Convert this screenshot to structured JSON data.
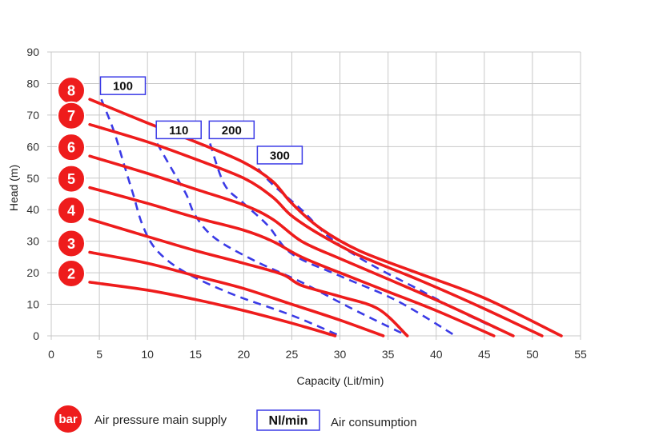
{
  "chart_data": {
    "type": "line",
    "title": "",
    "xlabel": "Capacity (Lit/min)",
    "ylabel": "Head (m)",
    "xlim": [
      0,
      55
    ],
    "ylim": [
      0,
      90
    ],
    "xticks": [
      0,
      5,
      10,
      15,
      20,
      25,
      30,
      35,
      40,
      45,
      50,
      55
    ],
    "yticks": [
      0,
      10,
      20,
      30,
      40,
      50,
      60,
      70,
      80,
      90
    ],
    "grid": true,
    "colors": {
      "pressure": "#ee1c1c",
      "air": "#3b3be6"
    },
    "pressure_curves": [
      {
        "label": "8",
        "points": [
          [
            4,
            75
          ],
          [
            10,
            67.5
          ],
          [
            15,
            61.5
          ],
          [
            20,
            55
          ],
          [
            23,
            49
          ],
          [
            25,
            42
          ],
          [
            28,
            34
          ],
          [
            32,
            27
          ],
          [
            38,
            20
          ],
          [
            45,
            12
          ],
          [
            53,
            0
          ]
        ]
      },
      {
        "label": "7",
        "points": [
          [
            4,
            67
          ],
          [
            10,
            61.5
          ],
          [
            15,
            56
          ],
          [
            20,
            50
          ],
          [
            23,
            44
          ],
          [
            25,
            38
          ],
          [
            28,
            32
          ],
          [
            32,
            25.5
          ],
          [
            38,
            18
          ],
          [
            44,
            10
          ],
          [
            51,
            0
          ]
        ]
      },
      {
        "label": "6",
        "points": [
          [
            4,
            57
          ],
          [
            10,
            51.5
          ],
          [
            15,
            46.5
          ],
          [
            20,
            41.5
          ],
          [
            23,
            37
          ],
          [
            26,
            30
          ],
          [
            30,
            24.5
          ],
          [
            35,
            18
          ],
          [
            41,
            10
          ],
          [
            48,
            0
          ]
        ]
      },
      {
        "label": "5",
        "points": [
          [
            4,
            47
          ],
          [
            10,
            42
          ],
          [
            15,
            37.5
          ],
          [
            20,
            33.5
          ],
          [
            23,
            30
          ],
          [
            26,
            25
          ],
          [
            30,
            20
          ],
          [
            35,
            14
          ],
          [
            40,
            8
          ],
          [
            46,
            0
          ]
        ]
      },
      {
        "label": "4",
        "points": [
          [
            4,
            37
          ],
          [
            10,
            31.5
          ],
          [
            15,
            27
          ],
          [
            20,
            23
          ],
          [
            24,
            19.5
          ],
          [
            26,
            16
          ],
          [
            30,
            12.5
          ],
          [
            34,
            8.5
          ],
          [
            37,
            0
          ]
        ]
      },
      {
        "label": "3",
        "points": [
          [
            4,
            26.5
          ],
          [
            10,
            23
          ],
          [
            15,
            19
          ],
          [
            20,
            15
          ],
          [
            25,
            10
          ],
          [
            30,
            5
          ],
          [
            34.5,
            0
          ]
        ]
      },
      {
        "label": "2",
        "points": [
          [
            4,
            17
          ],
          [
            10,
            14.5
          ],
          [
            15,
            11.5
          ],
          [
            20,
            8
          ],
          [
            25,
            4
          ],
          [
            29.5,
            0
          ]
        ]
      }
    ],
    "air_consumption_curves": [
      {
        "label": "100",
        "points": [
          [
            5.2,
            75
          ],
          [
            6.5,
            65
          ],
          [
            7.5,
            55
          ],
          [
            8.5,
            45
          ],
          [
            9.5,
            35
          ],
          [
            11,
            27
          ],
          [
            14,
            20
          ],
          [
            19,
            13
          ],
          [
            25,
            6.5
          ],
          [
            30,
            0
          ]
        ]
      },
      {
        "label": "110",
        "points": [
          [
            11,
            61
          ],
          [
            12.5,
            53
          ],
          [
            14,
            45
          ],
          [
            15,
            38
          ],
          [
            17,
            31
          ],
          [
            21,
            24
          ],
          [
            26,
            17
          ],
          [
            31,
            9
          ],
          [
            37,
            0
          ]
        ]
      },
      {
        "label": "200",
        "points": [
          [
            16.5,
            61
          ],
          [
            18,
            48
          ],
          [
            20,
            42
          ],
          [
            22.5,
            35
          ],
          [
            25,
            26
          ],
          [
            30,
            19
          ],
          [
            36,
            11
          ],
          [
            42,
            0
          ]
        ]
      },
      {
        "label": "300",
        "points": [
          [
            21.5,
            53
          ],
          [
            23,
            48
          ],
          [
            26,
            40
          ],
          [
            29,
            31
          ],
          [
            33,
            23
          ],
          [
            38,
            15
          ],
          [
            43,
            7
          ],
          [
            48,
            0
          ]
        ]
      }
    ],
    "badges": [
      "8",
      "7",
      "6",
      "5",
      "4",
      "3",
      "2"
    ],
    "air_boxes": [
      "100",
      "110",
      "200",
      "300"
    ],
    "legend": {
      "bar_symbol": "bar",
      "bar_label": "Air pressure main supply",
      "air_symbol": "Nl/min",
      "air_label": "Air consumption"
    }
  }
}
